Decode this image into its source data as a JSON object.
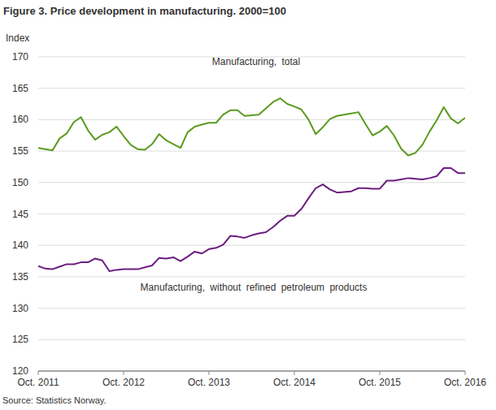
{
  "chart_data": {
    "type": "line",
    "title": "Figure 3. Price development in manufacturing. 2000=100",
    "y_label": "Index",
    "source": "Source: Statistics Norway.",
    "categories": [
      "Oct. 2011",
      null,
      null,
      null,
      null,
      null,
      null,
      null,
      null,
      null,
      null,
      null,
      "Oct. 2012",
      null,
      null,
      null,
      null,
      null,
      null,
      null,
      null,
      null,
      null,
      null,
      "Oct. 2013",
      null,
      null,
      null,
      null,
      null,
      null,
      null,
      null,
      null,
      null,
      null,
      "Oct. 2014",
      null,
      null,
      null,
      null,
      null,
      null,
      null,
      null,
      null,
      null,
      null,
      "Oct. 2015",
      null,
      null,
      null,
      null,
      null,
      null,
      null,
      null,
      null,
      null,
      null,
      "Oct. 2016"
    ],
    "series": [
      {
        "name": "Manufacturing, total",
        "color": "#5b9a1f",
        "values": [
          155.5,
          155.3,
          155.1,
          157,
          157.8,
          159.6,
          160.4,
          158.3,
          156.8,
          157.6,
          158,
          158.9,
          157.4,
          156,
          155.3,
          155.2,
          156.1,
          157.7,
          156.7,
          156.1,
          155.5,
          158,
          158.9,
          159.2,
          159.5,
          159.5,
          160.8,
          161.5,
          161.5,
          160.6,
          160.7,
          160.8,
          161.8,
          162.8,
          163.4,
          162.5,
          162.1,
          161.6,
          160,
          157.7,
          158.8,
          160.1,
          160.6,
          160.8,
          161,
          161.2,
          159.3,
          157.5,
          158.1,
          159,
          157.5,
          155.4,
          154.3,
          154.7,
          156,
          158.1,
          159.9,
          162,
          160.2,
          159.4,
          160.3
        ]
      },
      {
        "name": "Manufacturing, without refined petroleum products",
        "color": "#6c1d7f",
        "values": [
          136.7,
          136.3,
          136.2,
          136.6,
          137,
          137,
          137.3,
          137.3,
          137.9,
          137.6,
          135.9,
          136.1,
          136.2,
          136.2,
          136.2,
          136.5,
          136.8,
          138,
          137.9,
          138.1,
          137.5,
          138.2,
          139,
          138.7,
          139.4,
          139.6,
          140.1,
          141.5,
          141.4,
          141.2,
          141.6,
          141.9,
          142.1,
          142.9,
          143.9,
          144.7,
          144.7,
          145.8,
          147.5,
          149.1,
          149.7,
          148.9,
          148.4,
          148.5,
          148.6,
          149.1,
          149.1,
          149,
          149,
          150.3,
          150.3,
          150.5,
          150.7,
          150.6,
          150.5,
          150.7,
          151,
          152.3,
          152.3,
          151.5,
          151.5
        ]
      }
    ],
    "ylim": [
      120,
      170
    ],
    "yticks": [
      120,
      125,
      130,
      135,
      140,
      145,
      150,
      155,
      160,
      165,
      170
    ],
    "grid": true
  }
}
